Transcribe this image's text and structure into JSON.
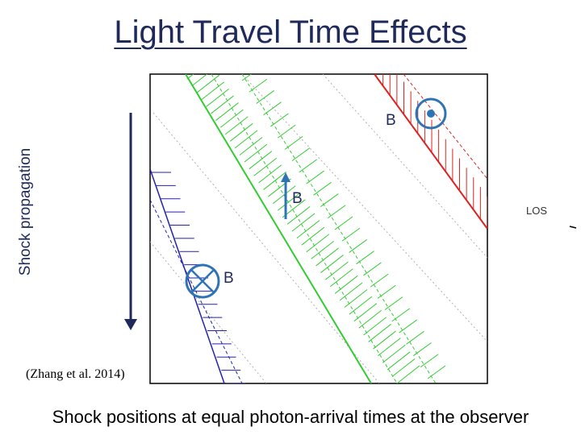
{
  "title": "Light Travel Time Effects",
  "caption": "Shock positions at equal photon-arrival times at the observer",
  "citation": "(Zhang et al. 2014)",
  "yaxis_label": "Shock propagation",
  "los_label": "LOS",
  "field_labels": {
    "top": "B",
    "middle": "B",
    "bottom": "B"
  },
  "colors": {
    "title": "#1f2a5a",
    "green": "#33cc33",
    "red": "#dd2222",
    "blue": "#2222aa",
    "symbol": "#2e74b5"
  },
  "icons": {
    "top": "field-out-of-page-icon",
    "middle": "field-up-arrow-icon",
    "bottom": "field-into-page-icon"
  }
}
